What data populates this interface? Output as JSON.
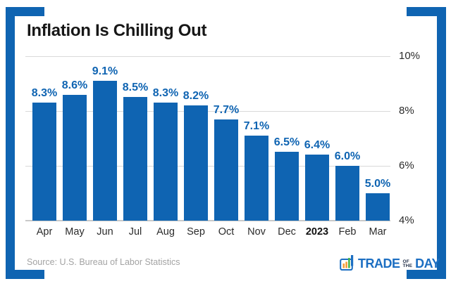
{
  "title": "Inflation Is Chilling Out",
  "source": "Source: U.S. Bureau of Labor Statistics",
  "brand": {
    "trade": "TRADE",
    "of": "OF",
    "the": "THE",
    "day": "DAY"
  },
  "colors": {
    "accent_blue": "#0f64b2",
    "bar": "#0f64b2",
    "value_label": "#0f64b2",
    "grid": "#d9d9d9",
    "baseline": "#c9c9c9",
    "axis_text": "#2b2b2b",
    "title_text": "#171717",
    "source_text": "#a3a3a3",
    "logo_blue": "#1b6ec2",
    "logo_dark": "#1d2b45",
    "logo_orange": "#f49d37",
    "logo_green": "#46b449"
  },
  "chart_data": {
    "type": "bar",
    "title": "Inflation Is Chilling Out",
    "categories": [
      "Apr",
      "May",
      "Jun",
      "Jul",
      "Aug",
      "Sep",
      "Oct",
      "Nov",
      "Dec",
      "2023",
      "Feb",
      "Mar"
    ],
    "values": [
      8.3,
      8.6,
      9.1,
      8.5,
      8.3,
      8.2,
      7.7,
      7.1,
      6.5,
      6.4,
      6.0,
      5.0
    ],
    "value_labels": [
      "8.3%",
      "8.6%",
      "9.1%",
      "8.5%",
      "8.3%",
      "8.2%",
      "7.7%",
      "7.1%",
      "6.5%",
      "6.4%",
      "6.0%",
      "5.0%"
    ],
    "emphasized_category": "2023",
    "xlabel": "",
    "ylabel": "",
    "ylim": [
      4,
      10
    ],
    "yticks": [
      4,
      6,
      8,
      10
    ],
    "ytick_labels": [
      "4%",
      "6%",
      "8%",
      "10%"
    ],
    "grid": true,
    "legend": false,
    "ytick_side": "right",
    "source": "U.S. Bureau of Labor Statistics"
  }
}
